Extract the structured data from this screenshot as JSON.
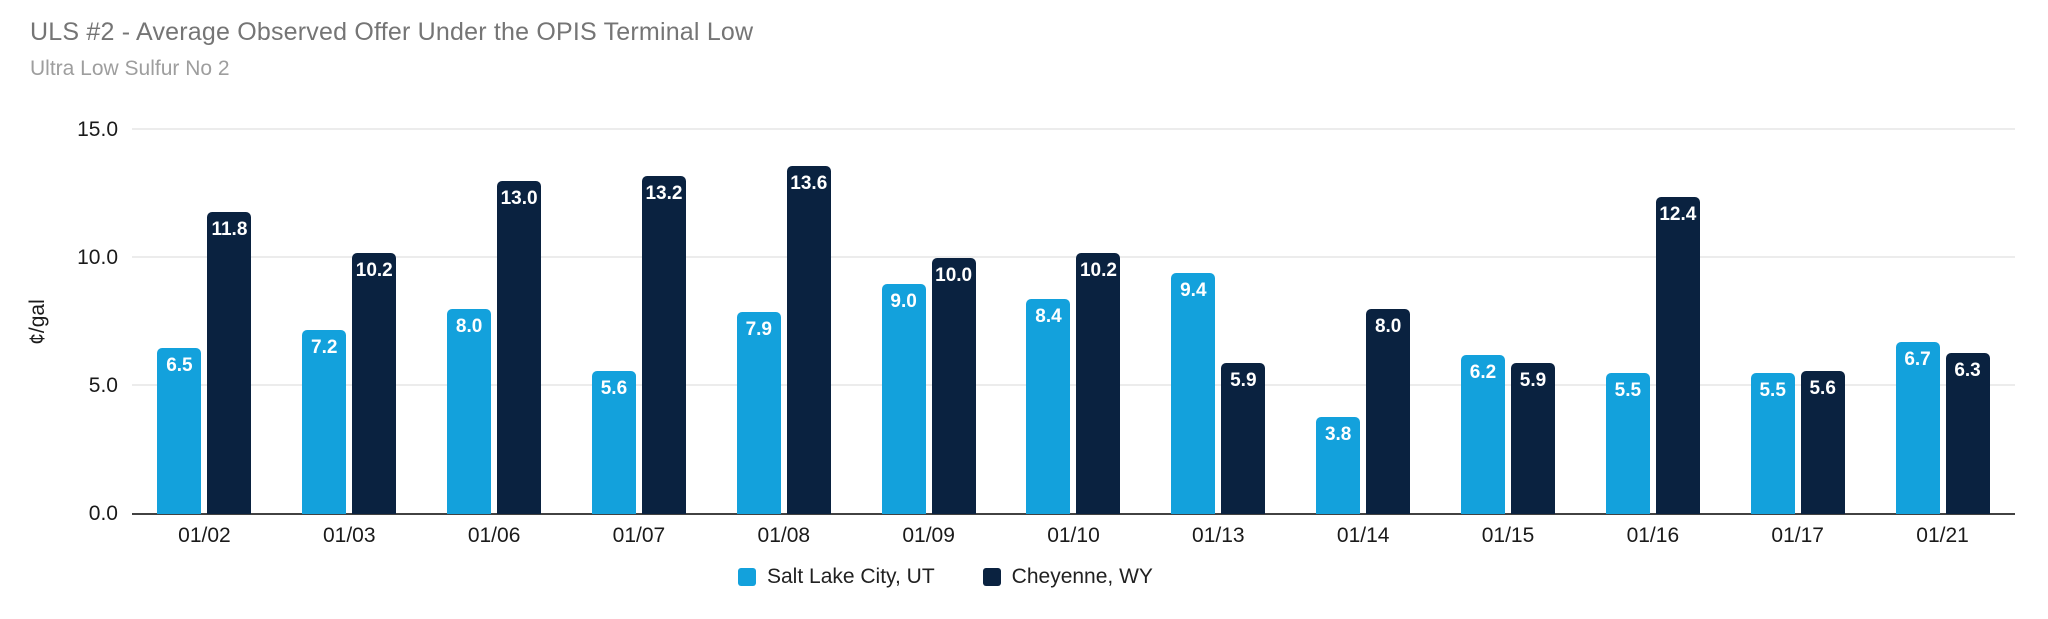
{
  "title": "ULS #2 - Average Observed Offer Under the OPIS Terminal Low",
  "subtitle": "Ultra Low Sulfur No 2",
  "colors": {
    "series_salt_lake_city": "#13A1DC",
    "series_cheyenne": "#0A2240",
    "title_text": "#757575",
    "subtitle_text": "#9E9E9E",
    "axis_text": "#1A1A1A",
    "gridline": "#D9D9D9",
    "baseline": "#424242",
    "bar_label_text": "#FFFFFF"
  },
  "chart_data": {
    "type": "bar",
    "title": "ULS #2 - Average Observed Offer Under the OPIS Terminal Low",
    "subtitle": "Ultra Low Sulfur No 2",
    "ylabel": "¢/gal",
    "xlabel": "",
    "ylim": [
      0,
      15
    ],
    "yticks": [
      {
        "value": 15,
        "label": "15.0"
      },
      {
        "value": 10,
        "label": "10.0"
      },
      {
        "value": 5,
        "label": "5.0"
      },
      {
        "value": 0,
        "label": "0.0"
      }
    ],
    "grid": true,
    "legend_position": "bottom",
    "bar_label_decimals": 1,
    "categories": [
      "01/02",
      "01/03",
      "01/06",
      "01/07",
      "01/08",
      "01/09",
      "01/10",
      "01/13",
      "01/14",
      "01/15",
      "01/16",
      "01/17",
      "01/21"
    ],
    "series": [
      {
        "name": "Salt Lake City, UT",
        "color": "#13A1DC",
        "values": [
          6.5,
          7.2,
          8.0,
          5.6,
          7.9,
          9.0,
          8.4,
          9.4,
          3.8,
          6.2,
          5.5,
          5.5,
          6.7
        ]
      },
      {
        "name": "Cheyenne, WY",
        "color": "#0A2240",
        "values": [
          11.8,
          10.2,
          13.0,
          13.2,
          13.6,
          10.0,
          10.2,
          5.9,
          8.0,
          5.9,
          12.4,
          5.6,
          6.3
        ]
      }
    ]
  }
}
